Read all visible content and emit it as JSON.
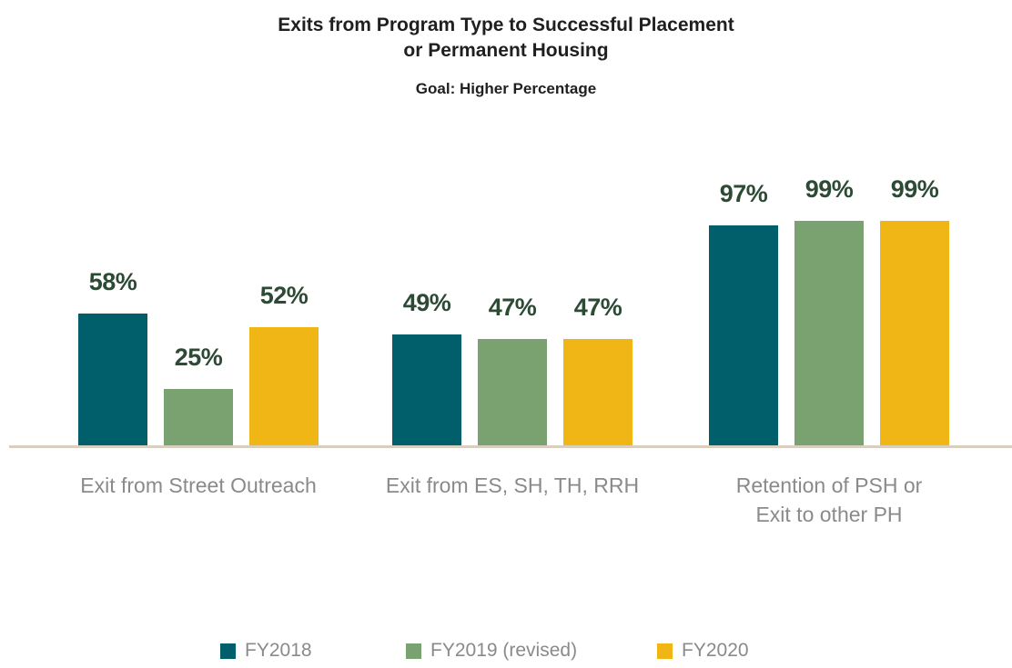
{
  "chart_data": {
    "type": "bar",
    "title": "Exits from Program Type to Successful Placement\nor Permanent Housing",
    "subtitle": "Goal: Higher Percentage",
    "categories": [
      "Exit from Street Outreach",
      "Exit from ES, SH, TH, RRH",
      "Retention of PSH or\nExit to other PH"
    ],
    "series": [
      {
        "name": "FY2018",
        "color": "#005f6b",
        "values": [
          58,
          49,
          97
        ],
        "value_labels": [
          "58%",
          "49%",
          "97%"
        ]
      },
      {
        "name": "FY2019 (revised)",
        "color": "#7aa271",
        "values": [
          25,
          47,
          99
        ],
        "value_labels": [
          "25%",
          "47%",
          "99%"
        ]
      },
      {
        "name": "FY2020",
        "color": "#f0b616",
        "values": [
          52,
          47,
          99
        ],
        "value_labels": [
          "52%",
          "47%",
          "99%"
        ]
      }
    ]
  }
}
